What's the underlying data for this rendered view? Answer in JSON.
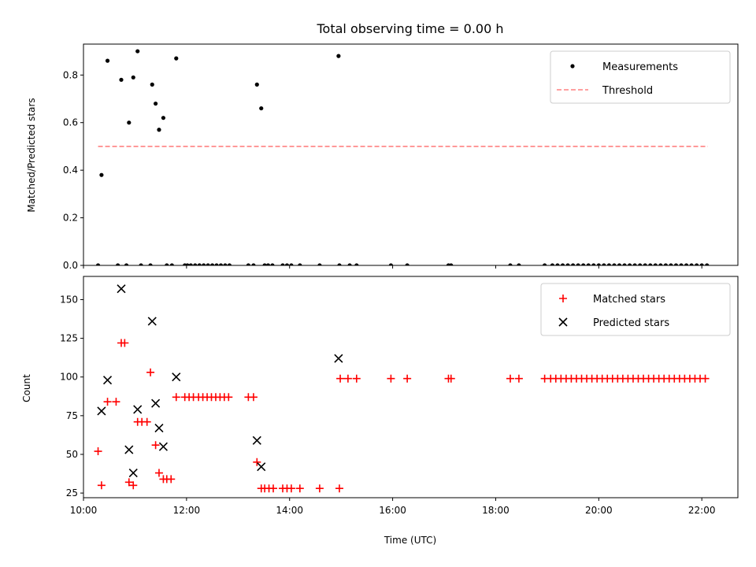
{
  "chart_data": [
    {
      "type": "scatter",
      "title": "Total observing time = 0.00 h",
      "ylabel": "Matched/Predicted stars",
      "xlabel": "",
      "xlim": [
        "10:00",
        "22:42"
      ],
      "ylim": [
        0,
        0.93
      ],
      "yticks": [
        0.0,
        0.2,
        0.4,
        0.6,
        0.8
      ],
      "ytick_labels": [
        "0.0",
        "0.2",
        "0.4",
        "0.6",
        "0.8"
      ],
      "legend_position": "top-right",
      "series": [
        {
          "name": "Measurements",
          "color": "#000000",
          "marker": "dot",
          "points": [
            [
              "10:17",
              0.0
            ],
            [
              "10:21",
              0.38
            ],
            [
              "10:28",
              0.86
            ],
            [
              "10:40",
              0.0
            ],
            [
              "10:44",
              0.78
            ],
            [
              "10:50",
              0.0
            ],
            [
              "10:53",
              0.6
            ],
            [
              "10:58",
              0.79
            ],
            [
              "11:03",
              0.9
            ],
            [
              "11:07",
              0.0
            ],
            [
              "11:18",
              0.0
            ],
            [
              "11:20",
              0.76
            ],
            [
              "11:24",
              0.68
            ],
            [
              "11:28",
              0.57
            ],
            [
              "11:33",
              0.62
            ],
            [
              "11:37",
              0.0
            ],
            [
              "11:43",
              0.0
            ],
            [
              "11:48",
              0.87
            ],
            [
              "11:58",
              0.0
            ],
            [
              "12:01",
              0.0
            ],
            [
              "12:05",
              0.0
            ],
            [
              "12:10",
              0.0
            ],
            [
              "12:15",
              0.0
            ],
            [
              "12:20",
              0.0
            ],
            [
              "12:25",
              0.0
            ],
            [
              "12:30",
              0.0
            ],
            [
              "12:35",
              0.0
            ],
            [
              "12:40",
              0.0
            ],
            [
              "12:45",
              0.0
            ],
            [
              "12:50",
              0.0
            ],
            [
              "13:12",
              0.0
            ],
            [
              "13:18",
              0.0
            ],
            [
              "13:22",
              0.76
            ],
            [
              "13:27",
              0.66
            ],
            [
              "13:31",
              0.0
            ],
            [
              "13:35",
              0.0
            ],
            [
              "13:40",
              0.0
            ],
            [
              "13:52",
              0.0
            ],
            [
              "13:57",
              0.0
            ],
            [
              "14:02",
              0.0
            ],
            [
              "14:12",
              0.0
            ],
            [
              "14:35",
              0.0
            ],
            [
              "14:57",
              0.88
            ],
            [
              "14:58",
              0.0
            ],
            [
              "15:10",
              0.0
            ],
            [
              "15:18",
              0.0
            ],
            [
              "15:58",
              0.0
            ],
            [
              "16:17",
              0.0
            ],
            [
              "17:05",
              0.0
            ],
            [
              "17:08",
              0.0
            ],
            [
              "18:17",
              0.0
            ],
            [
              "18:27",
              0.0
            ],
            [
              "18:57",
              0.0
            ],
            [
              "19:06",
              0.0
            ],
            [
              "19:12",
              0.0
            ],
            [
              "19:18",
              0.0
            ],
            [
              "19:24",
              0.0
            ],
            [
              "19:30",
              0.0
            ],
            [
              "19:36",
              0.0
            ],
            [
              "19:42",
              0.0
            ],
            [
              "19:48",
              0.0
            ],
            [
              "19:54",
              0.0
            ],
            [
              "20:00",
              0.0
            ],
            [
              "20:06",
              0.0
            ],
            [
              "20:12",
              0.0
            ],
            [
              "20:18",
              0.0
            ],
            [
              "20:24",
              0.0
            ],
            [
              "20:30",
              0.0
            ],
            [
              "20:36",
              0.0
            ],
            [
              "20:42",
              0.0
            ],
            [
              "20:48",
              0.0
            ],
            [
              "20:54",
              0.0
            ],
            [
              "21:00",
              0.0
            ],
            [
              "21:06",
              0.0
            ],
            [
              "21:12",
              0.0
            ],
            [
              "21:18",
              0.0
            ],
            [
              "21:24",
              0.0
            ],
            [
              "21:30",
              0.0
            ],
            [
              "21:36",
              0.0
            ],
            [
              "21:42",
              0.0
            ],
            [
              "21:48",
              0.0
            ],
            [
              "21:54",
              0.0
            ],
            [
              "22:00",
              0.0
            ],
            [
              "22:06",
              0.0
            ]
          ]
        },
        {
          "name": "Threshold",
          "color": "#ff8080",
          "style": "dashed",
          "points": [
            [
              "10:17",
              0.5
            ],
            [
              "22:07",
              0.5
            ]
          ]
        }
      ]
    },
    {
      "type": "scatter",
      "title": "",
      "ylabel": "Count",
      "xlabel": "Time (UTC)",
      "xlim": [
        "10:00",
        "22:42"
      ],
      "ylim": [
        22,
        165
      ],
      "yticks": [
        25,
        50,
        75,
        100,
        125,
        150
      ],
      "ytick_labels": [
        "25",
        "50",
        "75",
        "100",
        "125",
        "150"
      ],
      "xticks": [
        "10:00",
        "12:00",
        "14:00",
        "16:00",
        "18:00",
        "20:00",
        "22:00"
      ],
      "xtick_labels": [
        "10:00",
        "12:00",
        "14:00",
        "16:00",
        "18:00",
        "20:00",
        "22:00"
      ],
      "legend_position": "top-right",
      "series": [
        {
          "name": "Matched stars",
          "color": "#ff0000",
          "marker": "plus",
          "points": [
            [
              "10:17",
              52
            ],
            [
              "10:21",
              30
            ],
            [
              "10:28",
              84
            ],
            [
              "10:38",
              84
            ],
            [
              "10:44",
              122
            ],
            [
              "10:48",
              122
            ],
            [
              "10:53",
              32
            ],
            [
              "10:58",
              30
            ],
            [
              "11:03",
              71
            ],
            [
              "11:08",
              71
            ],
            [
              "11:14",
              71
            ],
            [
              "11:18",
              103
            ],
            [
              "11:24",
              56
            ],
            [
              "11:28",
              38
            ],
            [
              "11:33",
              34
            ],
            [
              "11:37",
              34
            ],
            [
              "11:42",
              34
            ],
            [
              "11:48",
              87
            ],
            [
              "11:58",
              87
            ],
            [
              "12:03",
              87
            ],
            [
              "12:08",
              87
            ],
            [
              "12:14",
              87
            ],
            [
              "12:19",
              87
            ],
            [
              "12:24",
              87
            ],
            [
              "12:29",
              87
            ],
            [
              "12:34",
              87
            ],
            [
              "12:39",
              87
            ],
            [
              "12:44",
              87
            ],
            [
              "12:49",
              87
            ],
            [
              "13:12",
              87
            ],
            [
              "13:18",
              87
            ],
            [
              "13:22",
              45
            ],
            [
              "13:27",
              28
            ],
            [
              "13:31",
              28
            ],
            [
              "13:36",
              28
            ],
            [
              "13:41",
              28
            ],
            [
              "13:52",
              28
            ],
            [
              "13:57",
              28
            ],
            [
              "14:02",
              28
            ],
            [
              "14:12",
              28
            ],
            [
              "14:35",
              28
            ],
            [
              "14:58",
              28
            ],
            [
              "14:59",
              99
            ],
            [
              "15:08",
              99
            ],
            [
              "15:18",
              99
            ],
            [
              "15:58",
              99
            ],
            [
              "16:17",
              99
            ],
            [
              "17:05",
              99
            ],
            [
              "17:08",
              99
            ],
            [
              "18:17",
              99
            ],
            [
              "18:27",
              99
            ],
            [
              "18:57",
              99
            ],
            [
              "19:04",
              99
            ],
            [
              "19:10",
              99
            ],
            [
              "19:16",
              99
            ],
            [
              "19:22",
              99
            ],
            [
              "19:28",
              99
            ],
            [
              "19:34",
              99
            ],
            [
              "19:40",
              99
            ],
            [
              "19:46",
              99
            ],
            [
              "19:52",
              99
            ],
            [
              "19:58",
              99
            ],
            [
              "20:04",
              99
            ],
            [
              "20:10",
              99
            ],
            [
              "20:16",
              99
            ],
            [
              "20:22",
              99
            ],
            [
              "20:28",
              99
            ],
            [
              "20:34",
              99
            ],
            [
              "20:40",
              99
            ],
            [
              "20:46",
              99
            ],
            [
              "20:52",
              99
            ],
            [
              "20:58",
              99
            ],
            [
              "21:04",
              99
            ],
            [
              "21:10",
              99
            ],
            [
              "21:16",
              99
            ],
            [
              "21:22",
              99
            ],
            [
              "21:28",
              99
            ],
            [
              "21:34",
              99
            ],
            [
              "21:40",
              99
            ],
            [
              "21:46",
              99
            ],
            [
              "21:52",
              99
            ],
            [
              "21:58",
              99
            ],
            [
              "22:04",
              99
            ]
          ]
        },
        {
          "name": "Predicted stars",
          "color": "#000000",
          "marker": "x",
          "points": [
            [
              "10:21",
              78
            ],
            [
              "10:28",
              98
            ],
            [
              "10:44",
              157
            ],
            [
              "10:53",
              53
            ],
            [
              "10:58",
              38
            ],
            [
              "11:03",
              79
            ],
            [
              "11:20",
              136
            ],
            [
              "11:24",
              83
            ],
            [
              "11:28",
              67
            ],
            [
              "11:33",
              55
            ],
            [
              "11:48",
              100
            ],
            [
              "13:22",
              59
            ],
            [
              "13:27",
              42
            ],
            [
              "14:57",
              112
            ]
          ]
        }
      ]
    }
  ]
}
